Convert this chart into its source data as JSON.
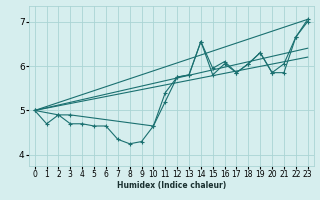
{
  "title": "",
  "xlabel": "Humidex (Indice chaleur)",
  "ylabel": "",
  "xlim": [
    -0.5,
    23.5
  ],
  "ylim": [
    3.75,
    7.35
  ],
  "yticks": [
    4,
    5,
    6,
    7
  ],
  "xticks": [
    0,
    1,
    2,
    3,
    4,
    5,
    6,
    7,
    8,
    9,
    10,
    11,
    12,
    13,
    14,
    15,
    16,
    17,
    18,
    19,
    20,
    21,
    22,
    23
  ],
  "bg_color": "#d6eeee",
  "grid_color": "#aad4d4",
  "line_color": "#1a7070",
  "line_width": 0.8,
  "marker_size": 2.5,
  "lines": [
    {
      "x": [
        0,
        1,
        2,
        3,
        4,
        5,
        6,
        7,
        8,
        9,
        10,
        11,
        12,
        13,
        14,
        15,
        16,
        17,
        18,
        19,
        20,
        21,
        22,
        23
      ],
      "y": [
        5.0,
        4.7,
        4.9,
        4.7,
        4.7,
        4.65,
        4.65,
        4.35,
        4.25,
        4.3,
        4.65,
        5.2,
        5.75,
        5.8,
        6.55,
        5.8,
        6.05,
        5.85,
        6.05,
        6.3,
        5.85,
        6.05,
        6.65,
        7.0
      ],
      "marker": true
    },
    {
      "x": [
        0,
        2,
        3,
        10,
        11,
        12,
        13,
        14,
        15,
        16,
        17,
        18,
        19,
        20,
        21,
        22,
        23
      ],
      "y": [
        5.0,
        4.9,
        4.9,
        4.65,
        5.4,
        5.75,
        5.8,
        6.55,
        5.95,
        6.1,
        5.85,
        6.05,
        6.3,
        5.85,
        5.85,
        6.65,
        7.05
      ],
      "marker": true
    },
    {
      "x": [
        0,
        23
      ],
      "y": [
        5.0,
        7.05
      ],
      "marker": false
    },
    {
      "x": [
        0,
        23
      ],
      "y": [
        5.0,
        6.4
      ],
      "marker": false
    },
    {
      "x": [
        0,
        23
      ],
      "y": [
        5.0,
        6.2
      ],
      "marker": false
    }
  ],
  "xlabel_fontsize": 5.5,
  "xlabel_fontweight": "bold",
  "xlabel_color": "#1a3030",
  "tick_labelsize": 5.5,
  "ytick_labelsize": 6.5
}
